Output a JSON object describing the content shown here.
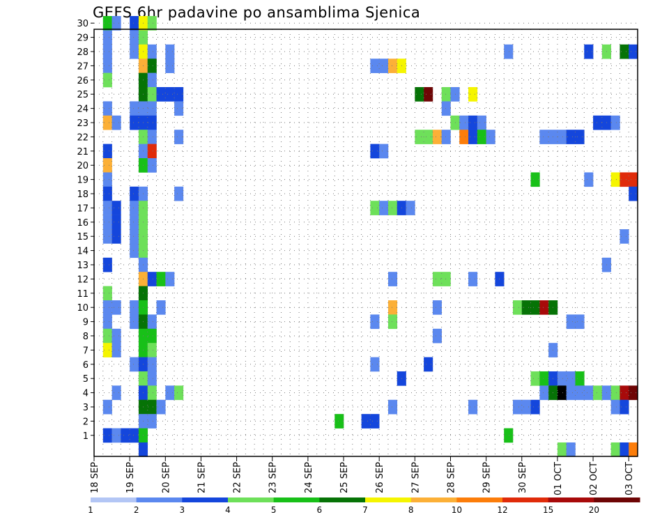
{
  "chart_data": {
    "type": "heatmap",
    "title": "GEFS 6hr padavine po ansamblima Sjenica",
    "y_categories": [
      "1",
      "2",
      "3",
      "4",
      "5",
      "6",
      "7",
      "8",
      "9",
      "10",
      "11",
      "12",
      "13",
      "14",
      "15",
      "16",
      "17",
      "18",
      "19",
      "20",
      "21",
      "22",
      "23",
      "24",
      "25",
      "26",
      "27",
      "28",
      "29",
      "30"
    ],
    "x_ticks": [
      "18 SEP",
      "19 SEP",
      "20 SEP",
      "21 SEP",
      "22 SEP",
      "23 SEP",
      "24 SEP",
      "25 SEP",
      "26 SEP",
      "27 SEP",
      "28 SEP",
      "29 SEP",
      "30 SEP",
      "01 OCT",
      "02 OCT",
      "03 OCT"
    ],
    "time_steps_per_day": 4,
    "num_time_steps": 61,
    "colorbar_labels": [
      "1",
      "2",
      "3",
      "4",
      "5",
      "6",
      "7",
      "8",
      "10",
      "12",
      "15",
      "20"
    ],
    "colorbar_colors": [
      "#b3c6f5",
      "#5b88ef",
      "#1446dc",
      "#6ee05a",
      "#18c018",
      "#067306",
      "#f5f500",
      "#fcb037",
      "#fc7d0a",
      "#e02b0a",
      "#a80a0a",
      "#6e0505"
    ],
    "grid": true,
    "cells": [
      [
        30,
        1,
        4
      ],
      [
        30,
        2,
        1
      ],
      [
        30,
        4,
        2
      ],
      [
        30,
        5,
        6
      ],
      [
        30,
        6,
        3
      ],
      [
        29,
        1,
        1
      ],
      [
        29,
        4,
        1
      ],
      [
        29,
        5,
        3
      ],
      [
        28,
        1,
        1
      ],
      [
        28,
        4,
        1
      ],
      [
        28,
        5,
        6
      ],
      [
        28,
        6,
        1
      ],
      [
        28,
        8,
        1
      ],
      [
        28,
        46,
        1
      ],
      [
        28,
        55,
        2
      ],
      [
        28,
        57,
        3
      ],
      [
        28,
        59,
        5
      ],
      [
        28,
        60,
        2
      ],
      [
        27,
        1,
        1
      ],
      [
        27,
        5,
        7
      ],
      [
        27,
        6,
        5
      ],
      [
        27,
        8,
        1
      ],
      [
        27,
        31,
        1
      ],
      [
        27,
        32,
        1
      ],
      [
        27,
        33,
        7
      ],
      [
        27,
        34,
        6
      ],
      [
        26,
        1,
        3
      ],
      [
        26,
        5,
        5
      ],
      [
        26,
        6,
        1
      ],
      [
        25,
        5,
        5
      ],
      [
        25,
        6,
        3
      ],
      [
        25,
        7,
        2
      ],
      [
        25,
        8,
        2
      ],
      [
        25,
        9,
        2
      ],
      [
        25,
        36,
        5
      ],
      [
        25,
        37,
        11
      ],
      [
        25,
        39,
        3
      ],
      [
        25,
        40,
        1
      ],
      [
        25,
        42,
        6
      ],
      [
        24,
        1,
        1
      ],
      [
        24,
        4,
        1
      ],
      [
        24,
        5,
        1
      ],
      [
        24,
        6,
        1
      ],
      [
        24,
        9,
        1
      ],
      [
        24,
        39,
        1
      ],
      [
        23,
        1,
        7
      ],
      [
        23,
        2,
        1
      ],
      [
        23,
        4,
        2
      ],
      [
        23,
        5,
        2
      ],
      [
        23,
        6,
        2
      ],
      [
        23,
        40,
        3
      ],
      [
        23,
        41,
        1
      ],
      [
        23,
        42,
        2
      ],
      [
        23,
        43,
        1
      ],
      [
        23,
        56,
        2
      ],
      [
        23,
        57,
        2
      ],
      [
        23,
        58,
        1
      ],
      [
        22,
        5,
        3
      ],
      [
        22,
        6,
        1
      ],
      [
        22,
        9,
        1
      ],
      [
        22,
        36,
        3
      ],
      [
        22,
        37,
        3
      ],
      [
        22,
        38,
        7
      ],
      [
        22,
        39,
        1
      ],
      [
        22,
        41,
        8
      ],
      [
        22,
        42,
        2
      ],
      [
        22,
        43,
        4
      ],
      [
        22,
        44,
        1
      ],
      [
        22,
        50,
        1
      ],
      [
        22,
        51,
        1
      ],
      [
        22,
        52,
        1
      ],
      [
        22,
        53,
        2
      ],
      [
        22,
        54,
        2
      ],
      [
        21,
        1,
        2
      ],
      [
        21,
        5,
        1
      ],
      [
        21,
        6,
        9
      ],
      [
        21,
        31,
        2
      ],
      [
        21,
        32,
        1
      ],
      [
        20,
        1,
        7
      ],
      [
        20,
        5,
        4
      ],
      [
        20,
        6,
        1
      ],
      [
        19,
        1,
        1
      ],
      [
        19,
        49,
        4
      ],
      [
        19,
        55,
        1
      ],
      [
        19,
        58,
        6
      ],
      [
        19,
        59,
        9
      ],
      [
        19,
        60,
        9
      ],
      [
        18,
        1,
        2
      ],
      [
        18,
        4,
        2
      ],
      [
        18,
        5,
        1
      ],
      [
        18,
        9,
        1
      ],
      [
        18,
        60,
        2
      ],
      [
        17,
        1,
        1
      ],
      [
        17,
        2,
        2
      ],
      [
        17,
        4,
        1
      ],
      [
        17,
        5,
        3
      ],
      [
        17,
        31,
        3
      ],
      [
        17,
        32,
        1
      ],
      [
        17,
        33,
        3
      ],
      [
        17,
        34,
        2
      ],
      [
        17,
        35,
        1
      ],
      [
        16,
        1,
        1
      ],
      [
        16,
        2,
        2
      ],
      [
        16,
        4,
        1
      ],
      [
        16,
        5,
        3
      ],
      [
        15,
        1,
        1
      ],
      [
        15,
        2,
        2
      ],
      [
        15,
        4,
        1
      ],
      [
        15,
        5,
        3
      ],
      [
        15,
        59,
        1
      ],
      [
        14,
        4,
        1
      ],
      [
        14,
        5,
        3
      ],
      [
        13,
        1,
        2
      ],
      [
        13,
        5,
        1
      ],
      [
        13,
        57,
        1
      ],
      [
        12,
        5,
        7
      ],
      [
        12,
        6,
        2
      ],
      [
        12,
        7,
        4
      ],
      [
        12,
        8,
        1
      ],
      [
        12,
        33,
        1
      ],
      [
        12,
        38,
        3
      ],
      [
        12,
        39,
        3
      ],
      [
        12,
        42,
        1
      ],
      [
        12,
        45,
        2
      ],
      [
        11,
        1,
        3
      ],
      [
        11,
        5,
        5
      ],
      [
        10,
        1,
        1
      ],
      [
        10,
        2,
        1
      ],
      [
        10,
        4,
        1
      ],
      [
        10,
        5,
        4
      ],
      [
        10,
        7,
        1
      ],
      [
        10,
        33,
        7
      ],
      [
        10,
        38,
        1
      ],
      [
        10,
        47,
        3
      ],
      [
        10,
        48,
        5
      ],
      [
        10,
        49,
        5
      ],
      [
        10,
        50,
        10
      ],
      [
        10,
        51,
        5
      ],
      [
        9,
        1,
        1
      ],
      [
        9,
        4,
        1
      ],
      [
        9,
        5,
        5
      ],
      [
        9,
        6,
        1
      ],
      [
        9,
        31,
        1
      ],
      [
        9,
        33,
        3
      ],
      [
        9,
        53,
        1
      ],
      [
        9,
        54,
        1
      ],
      [
        8,
        1,
        3
      ],
      [
        8,
        2,
        1
      ],
      [
        8,
        5,
        4
      ],
      [
        8,
        6,
        4
      ],
      [
        8,
        38,
        1
      ],
      [
        7,
        1,
        6
      ],
      [
        7,
        2,
        1
      ],
      [
        7,
        5,
        4
      ],
      [
        7,
        6,
        3
      ],
      [
        7,
        51,
        1
      ],
      [
        6,
        4,
        1
      ],
      [
        6,
        5,
        2
      ],
      [
        6,
        6,
        1
      ],
      [
        6,
        31,
        1
      ],
      [
        6,
        37,
        2
      ],
      [
        5,
        5,
        3
      ],
      [
        5,
        6,
        1
      ],
      [
        5,
        34,
        2
      ],
      [
        5,
        49,
        3
      ],
      [
        5,
        50,
        4
      ],
      [
        5,
        51,
        2
      ],
      [
        5,
        52,
        1
      ],
      [
        5,
        53,
        1
      ],
      [
        5,
        54,
        4
      ],
      [
        4,
        2,
        1
      ],
      [
        4,
        5,
        2
      ],
      [
        4,
        6,
        3
      ],
      [
        4,
        8,
        1
      ],
      [
        4,
        9,
        3
      ],
      [
        4,
        50,
        1
      ],
      [
        4,
        51,
        5
      ],
      [
        4,
        52,
        12
      ],
      [
        4,
        53,
        1
      ],
      [
        4,
        54,
        1
      ],
      [
        4,
        55,
        1
      ],
      [
        4,
        56,
        3
      ],
      [
        4,
        57,
        1
      ],
      [
        4,
        58,
        3
      ],
      [
        4,
        59,
        10
      ],
      [
        4,
        60,
        11
      ],
      [
        3,
        1,
        1
      ],
      [
        3,
        5,
        5
      ],
      [
        3,
        6,
        5
      ],
      [
        3,
        7,
        1
      ],
      [
        3,
        33,
        1
      ],
      [
        3,
        42,
        1
      ],
      [
        3,
        47,
        1
      ],
      [
        3,
        48,
        1
      ],
      [
        3,
        49,
        2
      ],
      [
        3,
        58,
        1
      ],
      [
        3,
        59,
        2
      ],
      [
        2,
        5,
        1
      ],
      [
        2,
        6,
        1
      ],
      [
        2,
        27,
        4
      ],
      [
        2,
        30,
        2
      ],
      [
        2,
        31,
        2
      ],
      [
        1,
        1,
        2
      ],
      [
        1,
        2,
        1
      ],
      [
        1,
        3,
        2
      ],
      [
        1,
        4,
        2
      ],
      [
        1,
        5,
        4
      ],
      [
        1,
        46,
        4
      ],
      [
        0,
        5,
        2
      ],
      [
        0,
        52,
        3
      ],
      [
        0,
        53,
        1
      ],
      [
        0,
        58,
        3
      ],
      [
        0,
        59,
        2
      ],
      [
        0,
        60,
        8
      ]
    ]
  }
}
